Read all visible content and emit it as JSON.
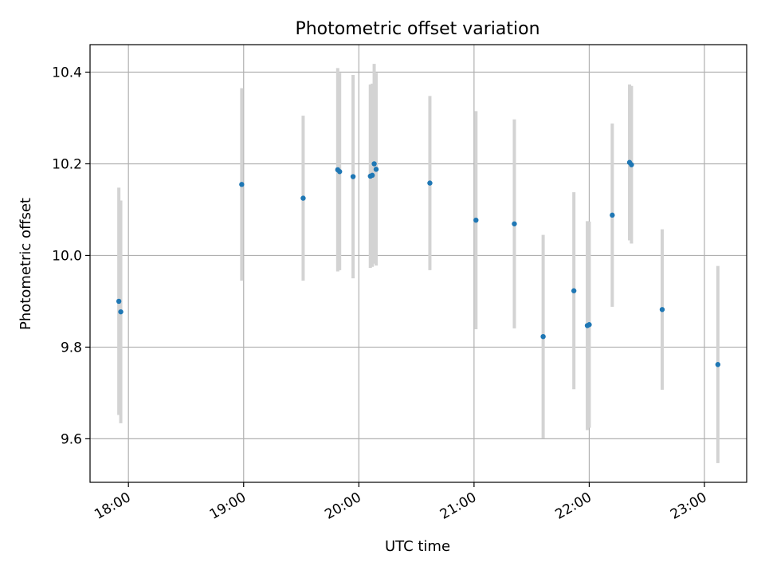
{
  "chart_data": {
    "type": "scatter",
    "title": "Photometric offset variation",
    "xlabel": "UTC time",
    "ylabel": "Photometric offset",
    "x_axis": "time",
    "xlim": [
      "17:40",
      "23:22"
    ],
    "ylim": [
      9.505,
      10.46
    ],
    "x_ticks": [
      "18:00",
      "19:00",
      "20:00",
      "21:00",
      "22:00",
      "23:00"
    ],
    "y_ticks": [
      9.6,
      9.8,
      10.0,
      10.2,
      10.4
    ],
    "grid": true,
    "legend": "none",
    "point_color": "#1f77b4",
    "errorbar_color": "#d3d3d3",
    "points": [
      {
        "x": "17:55",
        "y": 9.9,
        "yerr": 0.248
      },
      {
        "x": "17:56",
        "y": 9.877,
        "yerr": 0.243
      },
      {
        "x": "18:59",
        "y": 10.155,
        "yerr": 0.21
      },
      {
        "x": "19:31",
        "y": 10.125,
        "yerr": 0.18
      },
      {
        "x": "19:49",
        "y": 10.187,
        "yerr": 0.222
      },
      {
        "x": "19:50",
        "y": 10.183,
        "yerr": 0.215
      },
      {
        "x": "19:57",
        "y": 10.172,
        "yerr": 0.222
      },
      {
        "x": "20:06",
        "y": 10.173,
        "yerr": 0.2
      },
      {
        "x": "20:07",
        "y": 10.175,
        "yerr": 0.2
      },
      {
        "x": "20:08",
        "y": 10.2,
        "yerr": 0.218
      },
      {
        "x": "20:09",
        "y": 10.188,
        "yerr": 0.21
      },
      {
        "x": "20:37",
        "y": 10.158,
        "yerr": 0.19
      },
      {
        "x": "21:01",
        "y": 10.077,
        "yerr": 0.238
      },
      {
        "x": "21:21",
        "y": 10.069,
        "yerr": 0.228
      },
      {
        "x": "21:36",
        "y": 9.823,
        "yerr": 0.222
      },
      {
        "x": "21:52",
        "y": 9.923,
        "yerr": 0.215
      },
      {
        "x": "21:59",
        "y": 9.847,
        "yerr": 0.228
      },
      {
        "x": "22:00",
        "y": 9.849,
        "yerr": 0.225
      },
      {
        "x": "22:12",
        "y": 10.088,
        "yerr": 0.2
      },
      {
        "x": "22:21",
        "y": 10.203,
        "yerr": 0.17
      },
      {
        "x": "22:22",
        "y": 10.198,
        "yerr": 0.172
      },
      {
        "x": "22:38",
        "y": 9.882,
        "yerr": 0.175
      },
      {
        "x": "23:07",
        "y": 9.762,
        "yerr": 0.215
      }
    ]
  }
}
